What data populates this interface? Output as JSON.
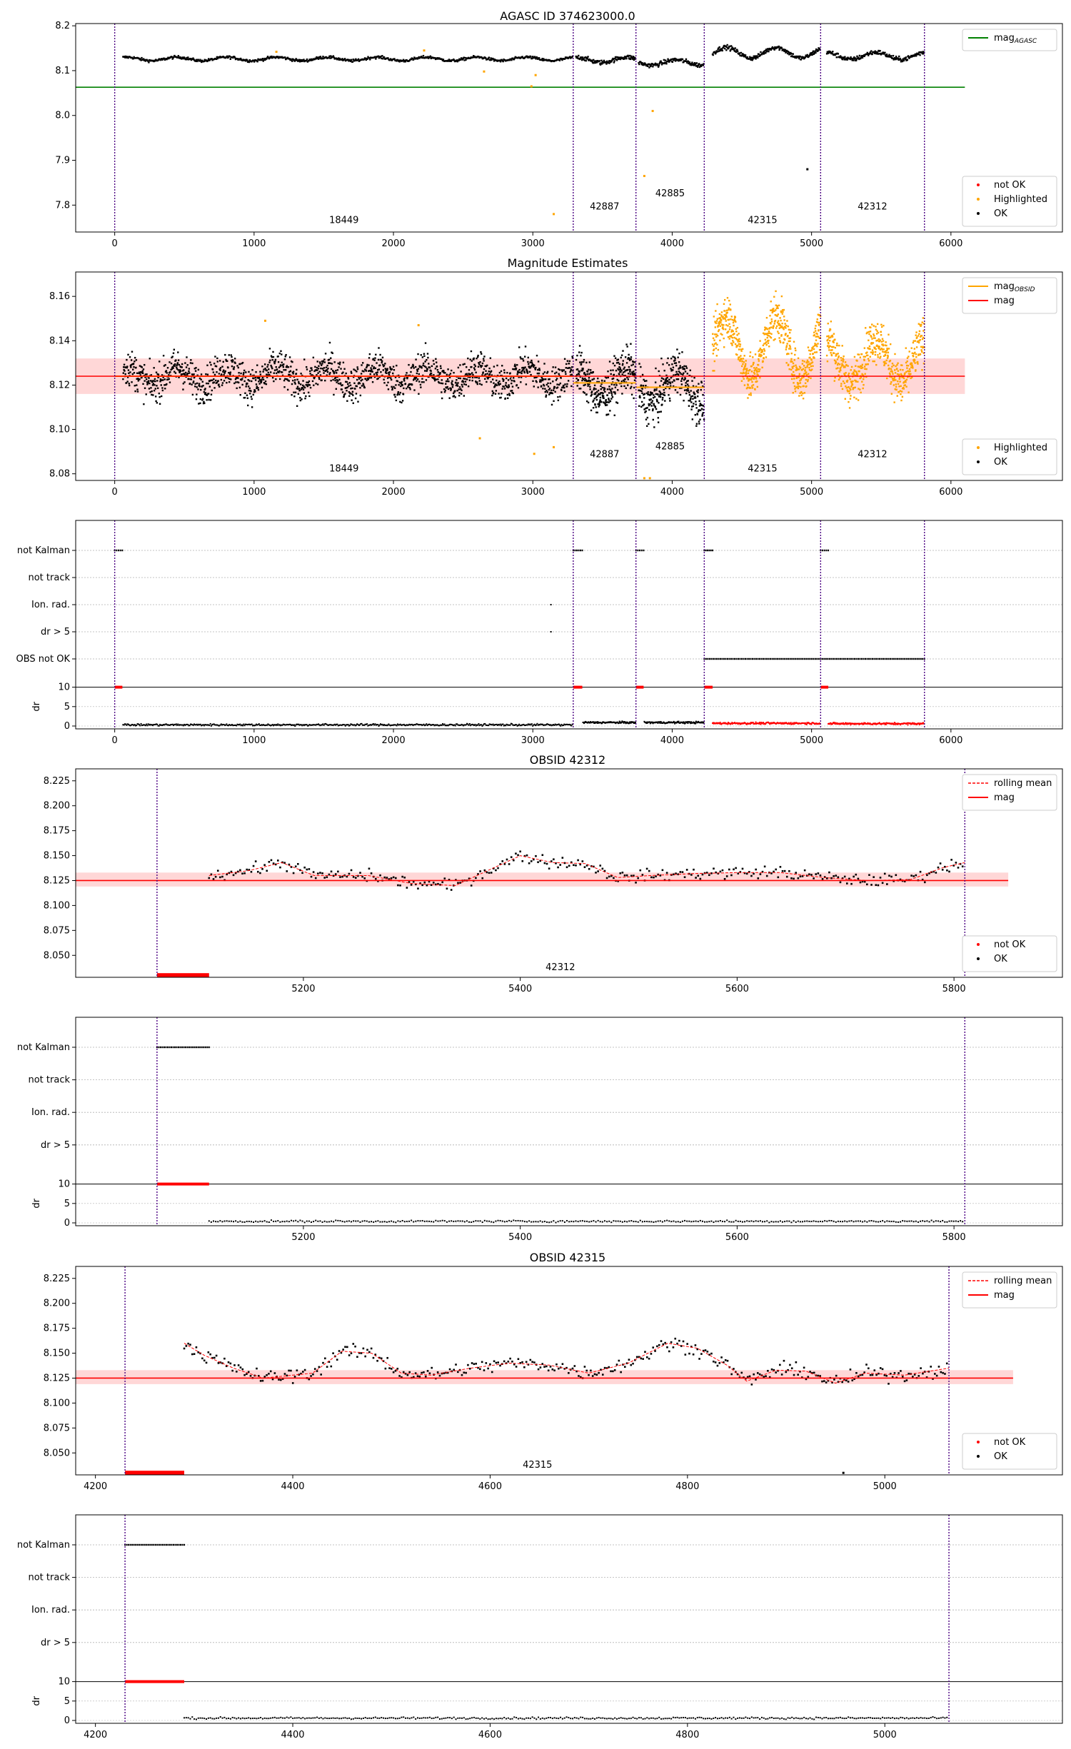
{
  "colors": {
    "ok": "#000000",
    "not_ok": "#ff0000",
    "highlighted": "#ffa500",
    "agasc": "#008000",
    "mag": "#ff0000",
    "mag_obsid": "#ffa500",
    "obsid_line": "#4b0082",
    "band": "#ffb6b6",
    "grid": "#b0b0b0"
  },
  "panels": {
    "p1": {
      "title": "AGASC ID 374623000.0",
      "type": "scatter",
      "xlim": [
        -280,
        6800
      ],
      "ylim": [
        7.74,
        8.205
      ],
      "xticks": [
        0,
        1000,
        2000,
        3000,
        4000,
        5000,
        6000
      ],
      "yticks": [
        7.8,
        7.9,
        8.0,
        8.1,
        8.2
      ],
      "yfmt": 1,
      "obs_lines": [
        0,
        3290,
        3740,
        4230,
        5065,
        5810
      ],
      "obs_labels": [
        {
          "x": 1645,
          "y": 7.76,
          "text": "18449"
        },
        {
          "x": 3515,
          "y": 7.79,
          "text": "42887"
        },
        {
          "x": 3985,
          "y": 7.82,
          "text": "42885"
        },
        {
          "x": 4648,
          "y": 7.76,
          "text": "42315"
        },
        {
          "x": 5437,
          "y": 7.79,
          "text": "42312"
        }
      ],
      "hline": {
        "y": 8.063,
        "x": [
          -280,
          6100
        ],
        "color": "#008000",
        "name": "mag_AGASC"
      },
      "legend_top": [
        {
          "label": "mag",
          "sub": "AGASC",
          "kind": "line",
          "color": "#008000"
        }
      ],
      "legend_bottom": [
        {
          "label": "not OK",
          "kind": "dot",
          "color": "#ff0000"
        },
        {
          "label": "Highlighted",
          "kind": "dot",
          "color": "#ffa500"
        },
        {
          "label": "OK",
          "kind": "dot",
          "color": "#000000"
        }
      ],
      "segments": [
        {
          "x0": 60,
          "x1": 3290,
          "y": 8.126,
          "amp": 0.004,
          "noise": 0.003,
          "color": "#000000",
          "n": 700
        },
        {
          "x0": 3310,
          "x1": 3740,
          "y": 8.124,
          "amp": 0.006,
          "noise": 0.005,
          "color": "#000000",
          "n": 120
        },
        {
          "x0": 3760,
          "x1": 4230,
          "y": 8.118,
          "amp": 0.006,
          "noise": 0.005,
          "color": "#000000",
          "n": 130
        },
        {
          "x0": 4290,
          "x1": 5065,
          "y": 8.14,
          "amp": 0.012,
          "noise": 0.005,
          "color": "#000000",
          "n": 220
        },
        {
          "x0": 5110,
          "x1": 5810,
          "y": 8.133,
          "amp": 0.008,
          "noise": 0.005,
          "color": "#000000",
          "n": 200
        }
      ],
      "points": [
        {
          "x": 3150,
          "y": 7.78,
          "c": "#ffa500"
        },
        {
          "x": 3800,
          "y": 7.865,
          "c": "#ffa500"
        },
        {
          "x": 3860,
          "y": 8.01,
          "c": "#ffa500"
        },
        {
          "x": 2990,
          "y": 8.065,
          "c": "#ffa500"
        },
        {
          "x": 3020,
          "y": 8.09,
          "c": "#ffa500"
        },
        {
          "x": 4970,
          "y": 7.88,
          "c": "#000000"
        },
        {
          "x": 2650,
          "y": 8.098,
          "c": "#ffa500"
        },
        {
          "x": 2220,
          "y": 8.145,
          "c": "#ffa500"
        },
        {
          "x": 1160,
          "y": 8.142,
          "c": "#ffa500"
        }
      ]
    },
    "p2": {
      "title": "Magnitude Estimates",
      "type": "scatter",
      "xlim": [
        -280,
        6800
      ],
      "ylim": [
        8.077,
        8.171
      ],
      "xticks": [
        0,
        1000,
        2000,
        3000,
        4000,
        5000,
        6000
      ],
      "yticks": [
        8.08,
        8.1,
        8.12,
        8.14,
        8.16
      ],
      "yfmt": 2,
      "obs_lines": [
        0,
        3290,
        3740,
        4230,
        5065,
        5810
      ],
      "obs_labels": [
        {
          "x": 1645,
          "y": 8.081,
          "text": "18449"
        },
        {
          "x": 3515,
          "y": 8.0875,
          "text": "42887"
        },
        {
          "x": 3985,
          "y": 8.091,
          "text": "42885"
        },
        {
          "x": 4648,
          "y": 8.081,
          "text": "42315"
        },
        {
          "x": 5437,
          "y": 8.0875,
          "text": "42312"
        }
      ],
      "band": {
        "y0": 8.116,
        "y1": 8.132,
        "x": [
          -280,
          6100
        ]
      },
      "hline": {
        "y": 8.124,
        "x": [
          -280,
          6100
        ],
        "color": "#ff0000",
        "name": "mag"
      },
      "obsid_mags": [
        {
          "x0": 0,
          "x1": 3290,
          "y": 8.124
        },
        {
          "x0": 3290,
          "x1": 3740,
          "y": 8.121
        },
        {
          "x0": 3740,
          "x1": 4230,
          "y": 8.119
        }
      ],
      "legend_top": [
        {
          "label": "mag",
          "sub": "OBSID",
          "kind": "line",
          "color": "#ffa500"
        },
        {
          "label": "mag",
          "kind": "line",
          "color": "#ff0000"
        }
      ],
      "legend_bottom": [
        {
          "label": "Highlighted",
          "kind": "dot",
          "color": "#ffa500"
        },
        {
          "label": "OK",
          "kind": "dot",
          "color": "#000000"
        }
      ],
      "segments": [
        {
          "x0": 60,
          "x1": 3290,
          "y": 8.124,
          "amp": 0.004,
          "noise": 0.008,
          "color": "#000000",
          "n": 1500
        },
        {
          "x0": 3310,
          "x1": 3740,
          "y": 8.121,
          "amp": 0.006,
          "noise": 0.01,
          "color": "#000000",
          "n": 300
        },
        {
          "x0": 3760,
          "x1": 4230,
          "y": 8.119,
          "amp": 0.007,
          "noise": 0.01,
          "color": "#000000",
          "n": 300
        },
        {
          "x0": 4290,
          "x1": 5065,
          "y": 8.137,
          "amp": 0.014,
          "noise": 0.01,
          "color": "#ffa500",
          "n": 600
        },
        {
          "x0": 5110,
          "x1": 5810,
          "y": 8.131,
          "amp": 0.01,
          "noise": 0.01,
          "color": "#ffa500",
          "n": 500
        }
      ],
      "points": [
        {
          "x": 3010,
          "y": 8.089,
          "c": "#ffa500"
        },
        {
          "x": 3150,
          "y": 8.092,
          "c": "#ffa500"
        },
        {
          "x": 3800,
          "y": 8.078,
          "c": "#ffa500"
        },
        {
          "x": 3840,
          "y": 8.078,
          "c": "#ffa500"
        },
        {
          "x": 2620,
          "y": 8.096,
          "c": "#ffa500"
        },
        {
          "x": 2180,
          "y": 8.147,
          "c": "#ffa500"
        },
        {
          "x": 1080,
          "y": 8.149,
          "c": "#ffa500"
        }
      ]
    },
    "p3": {
      "type": "flags",
      "xlim": [
        -280,
        6800
      ],
      "xticks": [
        0,
        1000,
        2000,
        3000,
        4000,
        5000,
        6000
      ],
      "flag_labels": [
        "not Kalman",
        "not track",
        "Ion. rad.",
        "dr > 5",
        "OBS not OK"
      ],
      "dr_label": "dr",
      "dr_ticks": [
        0,
        5,
        10
      ],
      "obs_lines": [
        0,
        3290,
        3740,
        4230,
        5065,
        5810
      ],
      "flag_runs": [
        {
          "row": 0,
          "x0": 0,
          "x1": 55
        },
        {
          "row": 0,
          "x0": 3290,
          "x1": 3355
        },
        {
          "row": 0,
          "x0": 3740,
          "x1": 3795
        },
        {
          "row": 0,
          "x0": 4230,
          "x1": 4290
        },
        {
          "row": 0,
          "x0": 5065,
          "x1": 5120
        },
        {
          "row": 4,
          "x0": 4230,
          "x1": 5810
        }
      ],
      "flag_points": [
        {
          "row": 2,
          "x": 3130
        },
        {
          "row": 3,
          "x": 3130
        }
      ],
      "dr_red": [
        {
          "x0": 0,
          "x1": 55
        },
        {
          "x0": 3290,
          "x1": 3355
        },
        {
          "x0": 3740,
          "x1": 3795
        },
        {
          "x0": 4230,
          "x1": 4290
        },
        {
          "x0": 5065,
          "x1": 5120
        }
      ],
      "dr_segments": [
        {
          "x0": 60,
          "x1": 3290,
          "lvl": 0.3,
          "color": "#000000",
          "n": 500
        },
        {
          "x0": 3360,
          "x1": 3740,
          "lvl": 0.9,
          "color": "#000000",
          "n": 100
        },
        {
          "x0": 3800,
          "x1": 4230,
          "lvl": 0.9,
          "color": "#000000",
          "n": 110
        },
        {
          "x0": 4290,
          "x1": 5065,
          "lvl": 0.7,
          "color": "#ff0000",
          "n": 200
        },
        {
          "x0": 5120,
          "x1": 5810,
          "lvl": 0.6,
          "color": "#ff0000",
          "n": 180
        }
      ]
    },
    "p4": {
      "title": "OBSID 42312",
      "type": "scatter",
      "xlim": [
        4990,
        5900
      ],
      "ylim": [
        8.028,
        8.237
      ],
      "xticks": [
        5200,
        5400,
        5600,
        5800
      ],
      "yticks": [
        8.05,
        8.075,
        8.1,
        8.125,
        8.15,
        8.175,
        8.2,
        8.225
      ],
      "yfmt": 3,
      "obs_lines": [
        5065,
        5810
      ],
      "obs_labels": [
        {
          "x": 5437,
          "y": 8.035,
          "text": "42312"
        }
      ],
      "band": {
        "y0": 8.119,
        "y1": 8.133,
        "x": [
          4990,
          5850
        ]
      },
      "hline": {
        "y": 8.125,
        "x": [
          4990,
          5850
        ],
        "color": "#ff0000",
        "name": "mag"
      },
      "red_run": {
        "x0": 5065,
        "x1": 5113,
        "y": 8.03
      },
      "legend_top": [
        {
          "label": "rolling mean",
          "kind": "dash",
          "color": "#ff0000"
        },
        {
          "label": "mag",
          "kind": "line",
          "color": "#ff0000"
        }
      ],
      "legend_bottom": [
        {
          "label": "not OK",
          "kind": "dot",
          "color": "#ff0000"
        },
        {
          "label": "OK",
          "kind": "dot",
          "color": "#000000"
        }
      ],
      "series_ok": {
        "x0": 5113,
        "x1": 5810,
        "n": 340,
        "noise": 0.006,
        "knots": [
          [
            5113,
            8.13
          ],
          [
            5150,
            8.135
          ],
          [
            5180,
            8.143
          ],
          [
            5210,
            8.13
          ],
          [
            5260,
            8.13
          ],
          [
            5300,
            8.122
          ],
          [
            5340,
            8.12
          ],
          [
            5370,
            8.135
          ],
          [
            5400,
            8.15
          ],
          [
            5430,
            8.143
          ],
          [
            5460,
            8.142
          ],
          [
            5490,
            8.128
          ],
          [
            5520,
            8.13
          ],
          [
            5560,
            8.132
          ],
          [
            5600,
            8.133
          ],
          [
            5640,
            8.133
          ],
          [
            5680,
            8.128
          ],
          [
            5720,
            8.125
          ],
          [
            5760,
            8.126
          ],
          [
            5790,
            8.138
          ],
          [
            5810,
            8.143
          ]
        ]
      }
    },
    "p5": {
      "type": "flags",
      "xlim": [
        4990,
        5900
      ],
      "xticks": [
        5200,
        5400,
        5600,
        5800
      ],
      "flag_labels": [
        "not Kalman",
        "not track",
        "Ion. rad.",
        "dr > 5"
      ],
      "dr_label": "dr",
      "dr_ticks": [
        0,
        5,
        10
      ],
      "obs_lines": [
        5065,
        5810
      ],
      "flag_runs": [
        {
          "row": 0,
          "x0": 5065,
          "x1": 5113
        }
      ],
      "flag_points": [],
      "dr_red": [
        {
          "x0": 5065,
          "x1": 5113
        }
      ],
      "dr_segments": [
        {
          "x0": 5113,
          "x1": 5810,
          "lvl": 0.4,
          "color": "#000000",
          "n": 340
        }
      ]
    },
    "p6": {
      "title": "OBSID 42315",
      "type": "scatter",
      "xlim": [
        4180,
        5180
      ],
      "ylim": [
        8.028,
        8.237
      ],
      "xticks": [
        4200,
        4400,
        4600,
        4800,
        5000
      ],
      "yticks": [
        8.05,
        8.075,
        8.1,
        8.125,
        8.15,
        8.175,
        8.2,
        8.225
      ],
      "yfmt": 3,
      "obs_lines": [
        4230,
        5065
      ],
      "obs_labels": [
        {
          "x": 4648,
          "y": 8.035,
          "text": "42315"
        }
      ],
      "band": {
        "y0": 8.119,
        "y1": 8.133,
        "x": [
          4180,
          5130
        ]
      },
      "hline": {
        "y": 8.125,
        "x": [
          4180,
          5130
        ],
        "color": "#ff0000",
        "name": "mag"
      },
      "red_run": {
        "x0": 4230,
        "x1": 4290,
        "y": 8.03
      },
      "legend_top": [
        {
          "label": "rolling mean",
          "kind": "dash",
          "color": "#ff0000"
        },
        {
          "label": "mag",
          "kind": "line",
          "color": "#ff0000"
        }
      ],
      "legend_bottom": [
        {
          "label": "not OK",
          "kind": "dot",
          "color": "#ff0000"
        },
        {
          "label": "OK",
          "kind": "dot",
          "color": "#000000"
        }
      ],
      "points": [
        {
          "x": 4958,
          "y": 8.03,
          "c": "#000000"
        }
      ],
      "series_ok": {
        "x0": 4290,
        "x1": 5065,
        "n": 380,
        "noise": 0.007,
        "knots": [
          [
            4290,
            8.16
          ],
          [
            4310,
            8.148
          ],
          [
            4340,
            8.135
          ],
          [
            4370,
            8.125
          ],
          [
            4400,
            8.128
          ],
          [
            4420,
            8.13
          ],
          [
            4450,
            8.152
          ],
          [
            4480,
            8.15
          ],
          [
            4510,
            8.13
          ],
          [
            4540,
            8.128
          ],
          [
            4580,
            8.135
          ],
          [
            4620,
            8.14
          ],
          [
            4660,
            8.138
          ],
          [
            4700,
            8.13
          ],
          [
            4740,
            8.14
          ],
          [
            4780,
            8.16
          ],
          [
            4810,
            8.155
          ],
          [
            4840,
            8.138
          ],
          [
            4860,
            8.122
          ],
          [
            4890,
            8.133
          ],
          [
            4920,
            8.132
          ],
          [
            4950,
            8.12
          ],
          [
            4980,
            8.13
          ],
          [
            5020,
            8.128
          ],
          [
            5065,
            8.135
          ]
        ]
      }
    },
    "p7": {
      "type": "flags",
      "xlim": [
        4180,
        5180
      ],
      "xticks": [
        4200,
        4400,
        4600,
        4800,
        5000
      ],
      "flag_labels": [
        "not Kalman",
        "not track",
        "Ion. rad.",
        "dr > 5"
      ],
      "dr_label": "dr",
      "dr_ticks": [
        0,
        5,
        10
      ],
      "obs_lines": [
        4230,
        5065
      ],
      "flag_runs": [
        {
          "row": 0,
          "x0": 4230,
          "x1": 4290
        }
      ],
      "flag_points": [],
      "dr_red": [
        {
          "x0": 4230,
          "x1": 4290
        }
      ],
      "dr_segments": [
        {
          "x0": 4290,
          "x1": 5065,
          "lvl": 0.6,
          "color": "#000000",
          "n": 380
        }
      ]
    }
  }
}
